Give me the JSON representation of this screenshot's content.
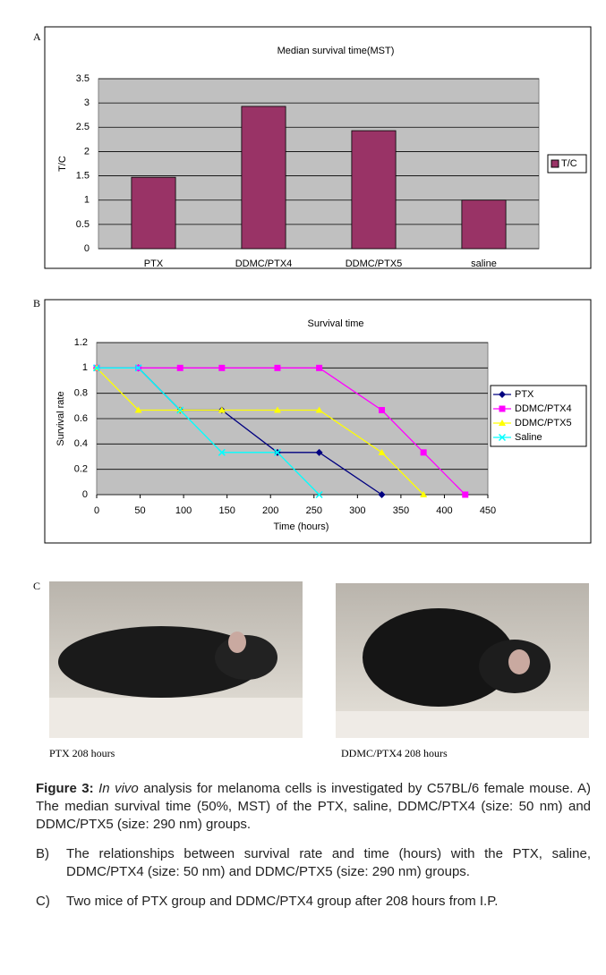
{
  "panels": [
    "A",
    "B",
    "C"
  ],
  "chart_data": [
    {
      "type": "bar",
      "title": "Median survival time(MST)",
      "y_label": "T/C",
      "categories": [
        "PTX",
        "DDMC/PTX4",
        "DDMC/PTX5",
        "saline"
      ],
      "series": [
        {
          "name": "T/C",
          "color": "#993366",
          "values": [
            1.47,
            2.93,
            2.43,
            1.0
          ]
        }
      ],
      "ylim": [
        0,
        3.5
      ],
      "yticks": [
        0,
        0.5,
        1,
        1.5,
        2,
        2.5,
        3,
        3.5
      ],
      "grid": true,
      "legend": "right"
    },
    {
      "type": "line",
      "title": "Survival time",
      "x_label": "Time (hours)",
      "y_label": "Survival rate",
      "series": [
        {
          "name": "PTX",
          "color": "#000080",
          "marker": "diamond",
          "x": [
            0,
            48,
            96,
            144,
            208,
            256,
            328
          ],
          "values": [
            1,
            1,
            0.667,
            0.667,
            0.333,
            0.333,
            0
          ]
        },
        {
          "name": "DDMC/PTX4",
          "color": "#ff00ff",
          "marker": "square",
          "x": [
            0,
            48,
            96,
            144,
            208,
            256,
            328,
            376,
            424
          ],
          "values": [
            1,
            1,
            1,
            1,
            1,
            1,
            0.667,
            0.333,
            0
          ]
        },
        {
          "name": "DDMC/PTX5",
          "color": "#ffff00",
          "marker": "triangle",
          "x": [
            0,
            48,
            96,
            144,
            208,
            256,
            328,
            376
          ],
          "values": [
            1,
            0.667,
            0.667,
            0.667,
            0.667,
            0.667,
            0.333,
            0
          ]
        },
        {
          "name": "Saline",
          "color": "#00ffff",
          "marker": "x",
          "x": [
            0,
            48,
            96,
            144,
            208,
            256
          ],
          "values": [
            1,
            1,
            0.667,
            0.333,
            0.333,
            0
          ]
        }
      ],
      "xlim": [
        0,
        450
      ],
      "xticks": [
        0,
        50,
        100,
        150,
        200,
        250,
        300,
        350,
        400,
        450
      ],
      "ylim": [
        0,
        1.2
      ],
      "yticks": [
        0,
        0.2,
        0.4,
        0.6,
        0.8,
        1,
        1.2
      ],
      "grid": true,
      "legend": "right"
    }
  ],
  "photos": [
    {
      "caption": "PTX 208 hours"
    },
    {
      "caption": "DDMC/PTX4 208 hours"
    }
  ],
  "caption": {
    "label": "Figure 3:",
    "italic": "In vivo",
    "text": " analysis for melanoma cells is investigated by C57BL/6 female mouse. A) The median survival time (50%, MST) of the PTX, saline, DDMC/PTX4 (size: 50 nm) and DDMC/PTX5 (size: 290 nm) groups.",
    "items": [
      {
        "label": "B)",
        "text": "The relationships between survival rate and time (hours) with the PTX, saline, DDMC/PTX4 (size: 50 nm) and DDMC/PTX5 (size: 290 nm) groups."
      },
      {
        "label": "C)",
        "text": "Two mice of PTX group and DDMC/PTX4 group after 208 hours from I.P."
      }
    ]
  }
}
